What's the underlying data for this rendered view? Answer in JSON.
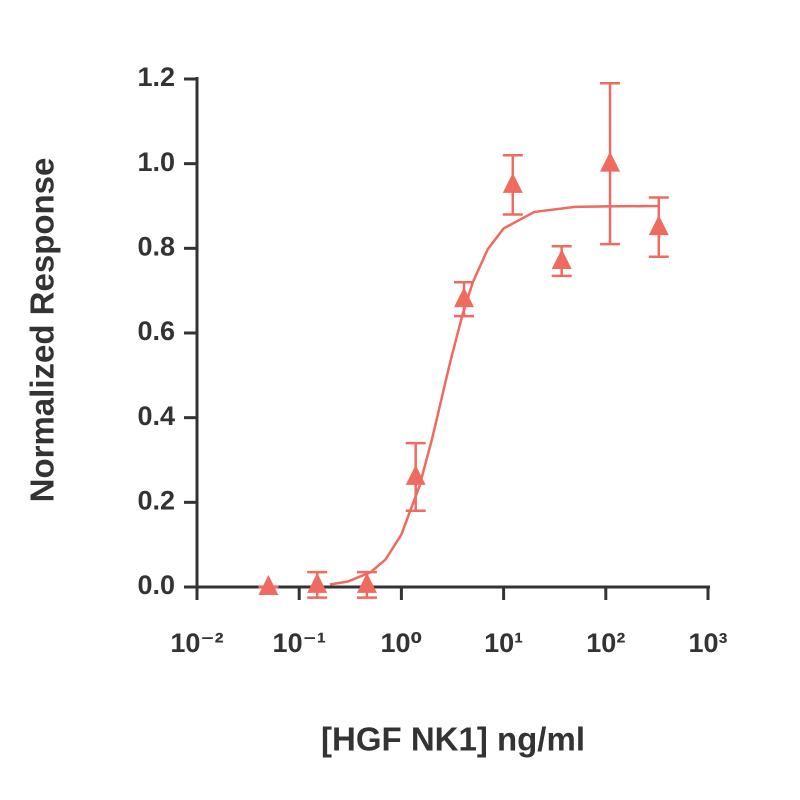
{
  "chart_data": {
    "type": "scatter",
    "x_label": "[HGF NK1] ng/ml",
    "y_label": "Normalized Response",
    "x": [
      0.05,
      0.15,
      0.46,
      1.38,
      4.1,
      12.3,
      37,
      110,
      330
    ],
    "values": [
      0,
      0.005,
      0.005,
      0.26,
      0.68,
      0.95,
      0.77,
      1.0,
      0.85
    ],
    "errors": [
      0,
      0.03,
      0.03,
      0.08,
      0.04,
      0.07,
      0.035,
      0.19,
      0.07
    ],
    "fit_x": [
      0.2,
      0.3,
      0.5,
      0.7,
      1,
      1.5,
      2,
      2.5,
      3,
      4,
      5,
      7,
      10,
      20,
      50,
      100,
      330
    ],
    "fit_values": [
      0.006,
      0.013,
      0.035,
      0.065,
      0.124,
      0.238,
      0.351,
      0.45,
      0.531,
      0.647,
      0.72,
      0.798,
      0.847,
      0.886,
      0.898,
      0.899,
      0.9
    ],
    "color": "#ef6a5f",
    "xscale": "log",
    "xlim": [
      0.01,
      1000
    ],
    "xticks": [
      {
        "value": 0.01,
        "label": "10⁻²"
      },
      {
        "value": 0.1,
        "label": "10⁻¹"
      },
      {
        "value": 1,
        "label": "10⁰"
      },
      {
        "value": 10,
        "label": "10¹"
      },
      {
        "value": 100,
        "label": "10²"
      },
      {
        "value": 1000,
        "label": "10³"
      }
    ],
    "ylim": [
      0,
      1.2
    ],
    "yticks": [
      {
        "value": 0,
        "label": "0.0"
      },
      0.2,
      0.4,
      0.6,
      0.8,
      {
        "value": 1,
        "label": "1.0"
      },
      1.2
    ]
  }
}
